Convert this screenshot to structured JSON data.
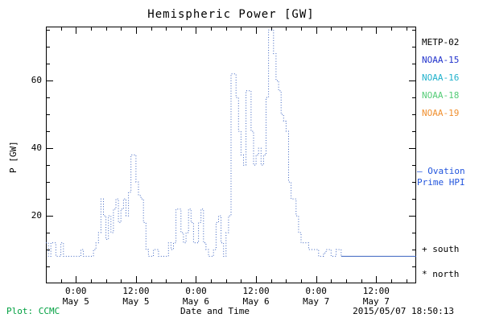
{
  "chart_data": {
    "type": "line",
    "title": "Hemispheric Power [GW]",
    "xlabel": "Date and Time",
    "ylabel": "P [GW]",
    "ylim": [
      0,
      76
    ],
    "yticks": [
      20,
      40,
      60
    ],
    "xlim_hours": [
      -6,
      68
    ],
    "x_units": "hours since 2015-05-05 00:00",
    "xticks": [
      {
        "hours": 0,
        "line1": "0:00",
        "line2": "May 5"
      },
      {
        "hours": 12,
        "line1": "12:00",
        "line2": "May 5"
      },
      {
        "hours": 24,
        "line1": "0:00",
        "line2": "May 6"
      },
      {
        "hours": 36,
        "line1": "12:00",
        "line2": "May 6"
      },
      {
        "hours": 48,
        "line1": "0:00",
        "line2": "May 7"
      },
      {
        "hours": 60,
        "line1": "12:00",
        "line2": "May 7"
      }
    ],
    "series": [
      {
        "name": "Hemispheric Power observed (NOAA)",
        "style": "dotted",
        "color": "#3a62c0",
        "points": [
          [
            -6,
            12
          ],
          [
            -5.5,
            8
          ],
          [
            -5,
            12
          ],
          [
            -4.5,
            12
          ],
          [
            -4,
            8
          ],
          [
            -3.5,
            8
          ],
          [
            -3,
            12
          ],
          [
            -2.5,
            8
          ],
          [
            -2,
            8
          ],
          [
            -1,
            8
          ],
          [
            0,
            8
          ],
          [
            0.5,
            8
          ],
          [
            1,
            10
          ],
          [
            1.5,
            8
          ],
          [
            2,
            8
          ],
          [
            3,
            8
          ],
          [
            3.5,
            10
          ],
          [
            4,
            12
          ],
          [
            4.5,
            15
          ],
          [
            5,
            25
          ],
          [
            5.5,
            20
          ],
          [
            6,
            13
          ],
          [
            6.5,
            20
          ],
          [
            7,
            15
          ],
          [
            7.5,
            22
          ],
          [
            8,
            25
          ],
          [
            8.5,
            18
          ],
          [
            9,
            22
          ],
          [
            9.5,
            25
          ],
          [
            10,
            20
          ],
          [
            10.5,
            27
          ],
          [
            11,
            38
          ],
          [
            11.5,
            38
          ],
          [
            12,
            30
          ],
          [
            12.5,
            26
          ],
          [
            13,
            25
          ],
          [
            13.5,
            18
          ],
          [
            14,
            10
          ],
          [
            14.5,
            8
          ],
          [
            15,
            8
          ],
          [
            15.5,
            10
          ],
          [
            16,
            10
          ],
          [
            16.5,
            8
          ],
          [
            17,
            8
          ],
          [
            18,
            8
          ],
          [
            18.5,
            12
          ],
          [
            19,
            10
          ],
          [
            19.5,
            12
          ],
          [
            20,
            22
          ],
          [
            20.5,
            22
          ],
          [
            21,
            15
          ],
          [
            21.5,
            12
          ],
          [
            22,
            15
          ],
          [
            22.5,
            22
          ],
          [
            23,
            18
          ],
          [
            23.5,
            12
          ],
          [
            24,
            12
          ],
          [
            24.5,
            18
          ],
          [
            25,
            22
          ],
          [
            25.5,
            12
          ],
          [
            26,
            10
          ],
          [
            26.5,
            8
          ],
          [
            27,
            8
          ],
          [
            27.5,
            10
          ],
          [
            28,
            18
          ],
          [
            28.5,
            20
          ],
          [
            29,
            12
          ],
          [
            29.5,
            8
          ],
          [
            30,
            15
          ],
          [
            30.5,
            20
          ],
          [
            31,
            62
          ],
          [
            31.5,
            62
          ],
          [
            32,
            55
          ],
          [
            32.5,
            45
          ],
          [
            33,
            38
          ],
          [
            33.5,
            35
          ],
          [
            34,
            57
          ],
          [
            34.5,
            57
          ],
          [
            35,
            45
          ],
          [
            35.5,
            35
          ],
          [
            36,
            38
          ],
          [
            36.5,
            40
          ],
          [
            37,
            35
          ],
          [
            37.5,
            38
          ],
          [
            38,
            55
          ],
          [
            38.5,
            75
          ],
          [
            39,
            75
          ],
          [
            39.5,
            68
          ],
          [
            40,
            60
          ],
          [
            40.5,
            57
          ],
          [
            41,
            50
          ],
          [
            41.5,
            48
          ],
          [
            42,
            45
          ],
          [
            42.5,
            30
          ],
          [
            43,
            25
          ],
          [
            43.5,
            25
          ],
          [
            44,
            20
          ],
          [
            44.5,
            15
          ],
          [
            45,
            12
          ],
          [
            46,
            12
          ],
          [
            46.5,
            10
          ],
          [
            47,
            10
          ],
          [
            48,
            10
          ],
          [
            48.5,
            8
          ],
          [
            49,
            8
          ],
          [
            49.5,
            9
          ],
          [
            50,
            10
          ],
          [
            50.5,
            10
          ],
          [
            51,
            8
          ],
          [
            52,
            10
          ],
          [
            52.5,
            10
          ],
          [
            53,
            8
          ]
        ]
      },
      {
        "name": "Ovation Prime HPI forecast",
        "style": "solid",
        "color": "#3a62c0",
        "points": [
          [
            53,
            8
          ],
          [
            68,
            8
          ]
        ]
      }
    ]
  },
  "legend": {
    "satellites": [
      {
        "label": "METP-02",
        "color": "#000000"
      },
      {
        "label": "NOAA-15",
        "color": "#2233cc"
      },
      {
        "label": "NOAA-16",
        "color": "#22b2cc"
      },
      {
        "label": "NOAA-18",
        "color": "#55cc77"
      },
      {
        "label": "NOAA-19",
        "color": "#f09030"
      }
    ],
    "ovation": {
      "line1": "– Ovation",
      "line2": "Prime HPI",
      "color": "#2255dd"
    },
    "south_marker": "+ south",
    "north_marker": "* north"
  },
  "footer": {
    "plot_credit": "Plot: CCMC",
    "plot_credit_color": "#00a040",
    "timestamp": "2015/05/07 18:50:13"
  }
}
